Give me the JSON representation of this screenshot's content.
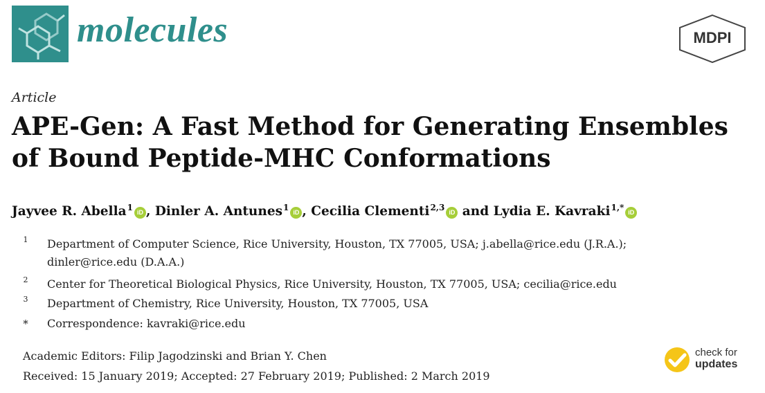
{
  "header": {
    "journal_name": "molecules",
    "publisher_logo_text": "MDPI",
    "journal_logo_icon": "molecule-structure-icon",
    "accent_color": "#2f8f8c"
  },
  "article": {
    "type_label": "Article",
    "title_line1": "APE-Gen: A Fast Method for Generating Ensembles",
    "title_line2": "of Bound Peptide-MHC Conformations"
  },
  "authors": [
    {
      "name": "Jayvee R. Abella",
      "sup": "1",
      "sep": ", "
    },
    {
      "name": "Dinler A. Antunes",
      "sup": "1",
      "sep": ", "
    },
    {
      "name": "Cecilia Clementi",
      "sup": "2,3",
      "sep": " and "
    },
    {
      "name": "Lydia E. Kavraki",
      "sup": "1,*",
      "sep": ""
    }
  ],
  "orcid_icon_text": "iD",
  "affiliations": [
    {
      "mark": "1",
      "lines": [
        "Department of Computer Science, Rice University, Houston, TX 77005, USA; j.abella@rice.edu (J.R.A.);",
        "dinler@rice.edu (D.A.A.)"
      ]
    },
    {
      "mark": "2",
      "lines": [
        "Center for Theoretical Biological Physics, Rice University, Houston, TX 77005, USA; cecilia@rice.edu"
      ]
    },
    {
      "mark": "3",
      "lines": [
        "Department of Chemistry, Rice University, Houston, TX 77005, USA"
      ]
    },
    {
      "mark": "*",
      "lines": [
        "Correspondence: kavraki@rice.edu"
      ]
    }
  ],
  "meta": {
    "editors": "Academic Editors: Filip Jagodzinski and Brian Y. Chen",
    "dates": "Received: 15 January 2019; Accepted: 27 February 2019; Published: 2 March 2019"
  },
  "check_for_updates": {
    "line1": "check for",
    "line2": "updates",
    "badge_color": "#f5c518"
  }
}
